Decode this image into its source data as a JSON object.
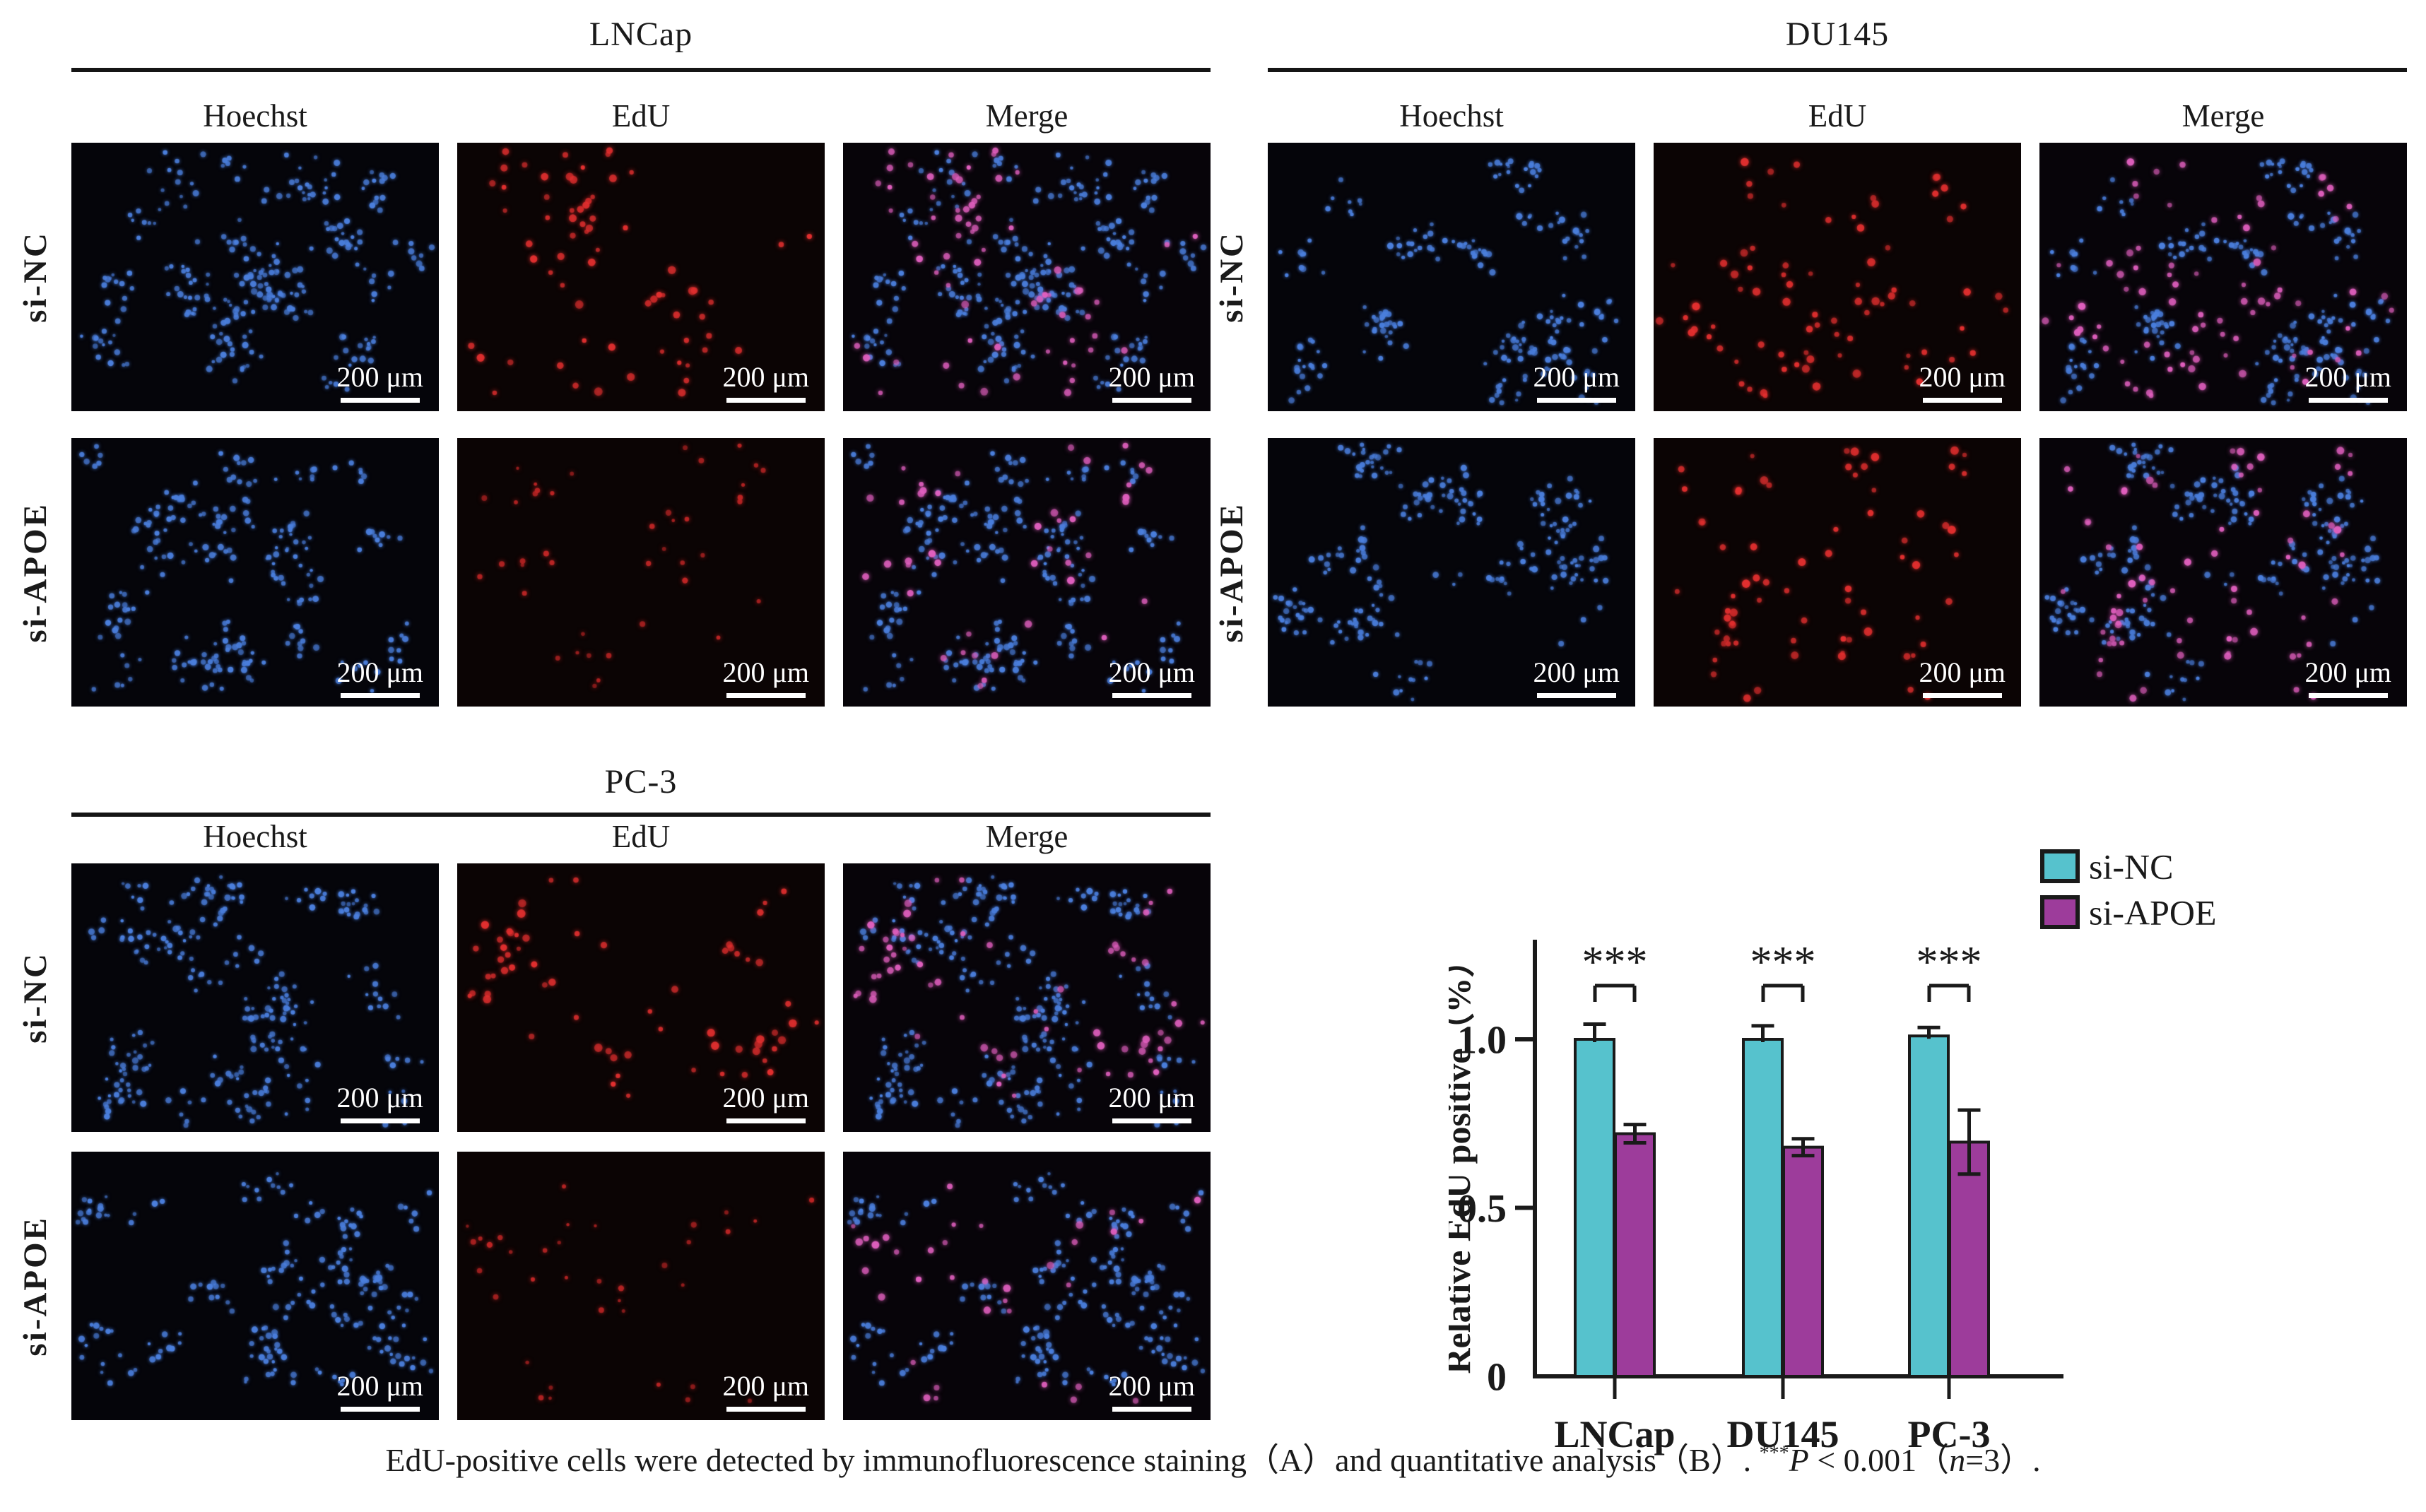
{
  "figure": {
    "panel_a": {
      "channels": [
        "Hoechst",
        "EdU",
        "Merge"
      ],
      "scale_bar_label": "200 μm",
      "colors": {
        "hoechst_dot": "#4b7fdd",
        "edu_dot": "#e22f2f",
        "edu_dot_dim": "#c02525",
        "merge_edu_dot": "#e05fbe",
        "hoechst_bg": "#05050a",
        "edu_bg": "#0b0404",
        "merge_bg": "#070409"
      },
      "blocks": [
        {
          "id": "lncap",
          "title": "LNCap",
          "rows": [
            {
              "label": "si-NC",
              "hoechst_seed": 11,
              "edu_seed": 12,
              "hoechst_count": 270,
              "edu_count": 68,
              "edu_dim": false
            },
            {
              "label": "si-APOE",
              "hoechst_seed": 21,
              "edu_seed": 22,
              "hoechst_count": 235,
              "edu_count": 42,
              "edu_dim": true
            }
          ]
        },
        {
          "id": "du145",
          "title": "DU145",
          "rows": [
            {
              "label": "si-NC",
              "hoechst_seed": 31,
              "edu_seed": 32,
              "hoechst_count": 215,
              "edu_count": 80,
              "edu_dim": false
            },
            {
              "label": "si-APOE",
              "hoechst_seed": 41,
              "edu_seed": 42,
              "hoechst_count": 225,
              "edu_count": 72,
              "edu_dim": false
            }
          ]
        },
        {
          "id": "pc3",
          "title": "PC-3",
          "rows": [
            {
              "label": "si-NC",
              "hoechst_seed": 51,
              "edu_seed": 52,
              "hoechst_count": 265,
              "edu_count": 66,
              "edu_dim": false
            },
            {
              "label": "si-APOE",
              "hoechst_seed": 61,
              "edu_seed": 62,
              "hoechst_count": 210,
              "edu_count": 36,
              "edu_dim": true
            }
          ]
        }
      ]
    },
    "chart_data": {
      "type": "bar",
      "categories": [
        "LNCap",
        "DU145",
        "PC-3"
      ],
      "series": [
        {
          "name": "si-NC",
          "color": "#56c2cd",
          "values": [
            1.0,
            1.0,
            1.01
          ],
          "errors": [
            0.045,
            0.04,
            0.025
          ],
          "error_display": "upper"
        },
        {
          "name": "si-APOE",
          "color": "#9d3c9b",
          "values": [
            0.72,
            0.68,
            0.695
          ],
          "errors": [
            0.027,
            0.025,
            0.095
          ],
          "error_display": "both"
        }
      ],
      "ylabel": "Relative EdU positive（%）",
      "yticks": [
        {
          "value": 0,
          "label": "0"
        },
        {
          "value": 0.5,
          "label": "0.5"
        },
        {
          "value": 1.0,
          "label": "1.0"
        }
      ],
      "ylim": [
        0,
        1.29
      ],
      "grid": false,
      "legend_position": "top-right",
      "significance_label": "***"
    },
    "caption": {
      "part1": "EdU-positive cells were detected by immunofluorescence staining（A）and quantitative analysis（B）. ",
      "stars": "***",
      "p": "P",
      "part2": " < 0.001（",
      "n": "n",
      "part3": "=3）."
    }
  }
}
